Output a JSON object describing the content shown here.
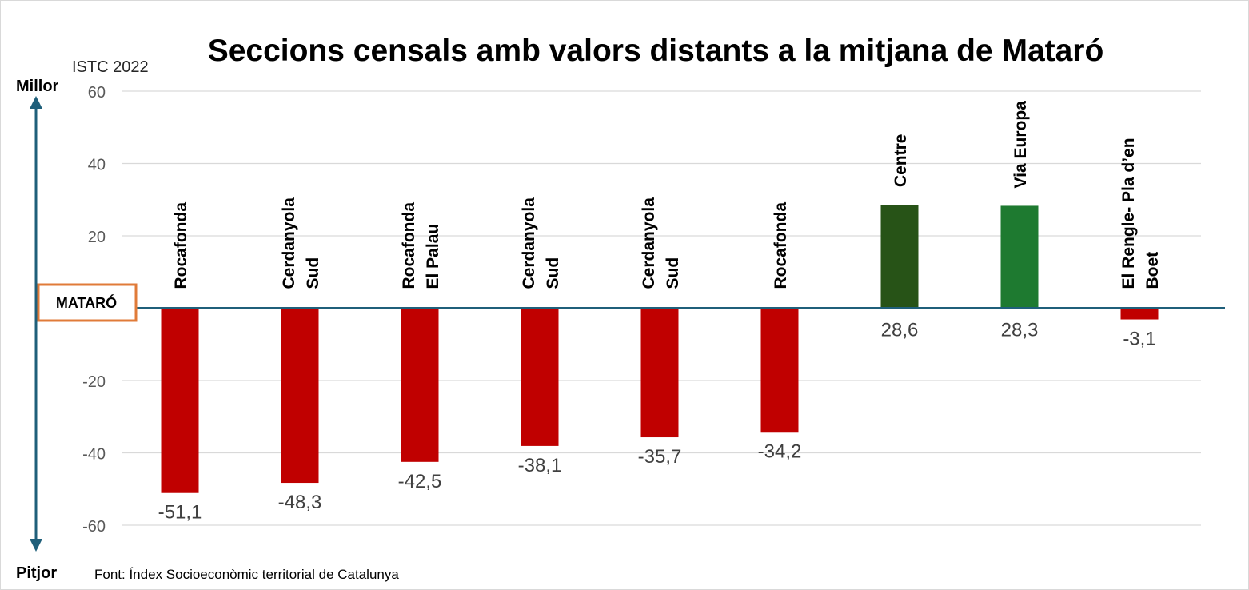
{
  "chart_data": {
    "type": "bar",
    "title": "Seccions censals amb valors distants a la mitjana de Mataró",
    "ylabel": "ISTC 2022",
    "ylim": [
      -60,
      60
    ],
    "yticks": [
      60,
      40,
      20,
      -20,
      -40,
      -60
    ],
    "grid": true,
    "baseline_label": "MATARÓ",
    "top_arrow_label": "Millor",
    "bottom_arrow_label": "Pitjor",
    "source": "Font: Índex Socioeconòmic territorial de Catalunya",
    "categories": [
      [
        "Rocafonda"
      ],
      [
        "Cerdanyola",
        "Sud"
      ],
      [
        "Rocafonda",
        "El Palau"
      ],
      [
        "Cerdanyola",
        "Sud"
      ],
      [
        "Cerdanyola",
        "Sud"
      ],
      [
        "Rocafonda"
      ],
      [
        "Centre"
      ],
      [
        "Via Europa"
      ],
      [
        "El Rengle- Pla d’en",
        "Boet"
      ]
    ],
    "values": [
      -51.1,
      -48.3,
      -42.5,
      -38.1,
      -35.7,
      -34.2,
      28.6,
      28.3,
      -3.1
    ],
    "value_labels": [
      "-51,1",
      "-48,3",
      "-42,5",
      "-38,1",
      "-35,7",
      "-34,2",
      "28,6",
      "28,3",
      "-3,1"
    ],
    "bar_colors": [
      "#c00000",
      "#c00000",
      "#c00000",
      "#c00000",
      "#c00000",
      "#c00000",
      "#275317",
      "#1e7a30",
      "#c00000"
    ]
  },
  "colors": {
    "axis": "#1f5f7a",
    "grid": "#d9d9d9",
    "baseline_box": "#e07b39",
    "tick_text": "#595959",
    "value_text": "#404040",
    "title_text": "#000000"
  }
}
